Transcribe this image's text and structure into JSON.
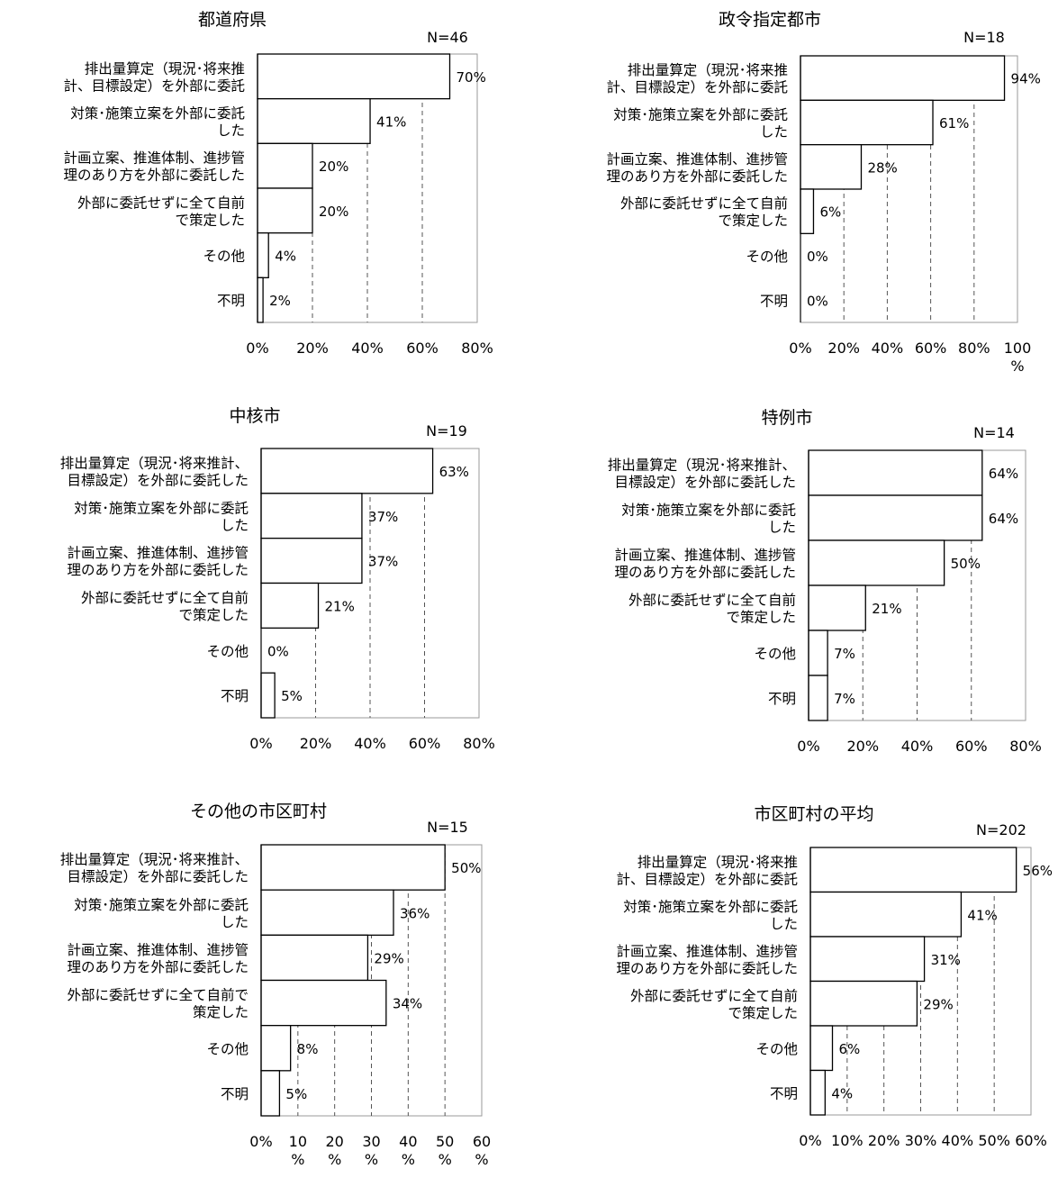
{
  "chart_data": [
    {
      "type": "bar",
      "orientation": "horizontal",
      "title": "都道府県",
      "n_label": "N=46",
      "categories": [
        [
          "排出量算定（現況･将来推",
          "計、目標設定）を外部に委託"
        ],
        [
          "対策･施策立案を外部に委託",
          "した"
        ],
        [
          "計画立案、推進体制、進捗管",
          "理のあり方を外部に委託した"
        ],
        [
          "外部に委託せずに全て自前",
          "で策定した"
        ],
        [
          "その他"
        ],
        [
          "不明"
        ]
      ],
      "values": [
        70,
        41,
        20,
        20,
        4,
        2
      ],
      "value_labels": [
        "70%",
        "41%",
        "20%",
        "20%",
        "4%",
        "2%"
      ],
      "xlim": [
        0,
        80
      ],
      "ticks": [
        0,
        20,
        40,
        60,
        80
      ],
      "tick_labels": [
        [
          "0%"
        ],
        [
          "20%"
        ],
        [
          "40%"
        ],
        [
          "60%"
        ],
        [
          "80%"
        ]
      ],
      "grid": true
    },
    {
      "type": "bar",
      "orientation": "horizontal",
      "title": "政令指定都市",
      "n_label": "N=18",
      "categories": [
        [
          "排出量算定（現況･将来推",
          "計、目標設定）を外部に委託"
        ],
        [
          "対策･施策立案を外部に委託",
          "した"
        ],
        [
          "計画立案、推進体制、進捗管",
          "理のあり方を外部に委託した"
        ],
        [
          "外部に委託せずに全て自前",
          "で策定した"
        ],
        [
          "その他"
        ],
        [
          "不明"
        ]
      ],
      "values": [
        94,
        61,
        28,
        6,
        0,
        0
      ],
      "value_labels": [
        "94%",
        "61%",
        "28%",
        "6%",
        "0%",
        "0%"
      ],
      "xlim": [
        0,
        100
      ],
      "ticks": [
        0,
        20,
        40,
        60,
        80,
        100
      ],
      "tick_labels": [
        [
          "0%"
        ],
        [
          "20%"
        ],
        [
          "40%"
        ],
        [
          "60%"
        ],
        [
          "80%"
        ],
        [
          "100",
          "%"
        ]
      ],
      "grid": true
    },
    {
      "type": "bar",
      "orientation": "horizontal",
      "title": "中核市",
      "n_label": "N=19",
      "categories": [
        [
          "排出量算定（現況･将来推計、",
          "目標設定）を外部に委託した"
        ],
        [
          "対策･施策立案を外部に委託",
          "した"
        ],
        [
          "計画立案、推進体制、進捗管",
          "理のあり方を外部に委託した"
        ],
        [
          "外部に委託せずに全て自前",
          "で策定した"
        ],
        [
          "その他"
        ],
        [
          "不明"
        ]
      ],
      "values": [
        63,
        37,
        37,
        21,
        0,
        5
      ],
      "value_labels": [
        "63%",
        "37%",
        "37%",
        "21%",
        "0%",
        "5%"
      ],
      "xlim": [
        0,
        80
      ],
      "ticks": [
        0,
        20,
        40,
        60,
        80
      ],
      "tick_labels": [
        [
          "0%"
        ],
        [
          "20%"
        ],
        [
          "40%"
        ],
        [
          "60%"
        ],
        [
          "80%"
        ]
      ],
      "grid": true
    },
    {
      "type": "bar",
      "orientation": "horizontal",
      "title": "特例市",
      "n_label": "N=14",
      "categories": [
        [
          "排出量算定（現況･将来推計、",
          "目標設定）を外部に委託した"
        ],
        [
          "対策･施策立案を外部に委託",
          "した"
        ],
        [
          "計画立案、推進体制、進捗管",
          "理のあり方を外部に委託した"
        ],
        [
          "外部に委託せずに全て自前",
          "で策定した"
        ],
        [
          "その他"
        ],
        [
          "不明"
        ]
      ],
      "values": [
        64,
        64,
        50,
        21,
        7,
        7
      ],
      "value_labels": [
        "64%",
        "64%",
        "50%",
        "21%",
        "7%",
        "7%"
      ],
      "xlim": [
        0,
        80
      ],
      "ticks": [
        0,
        20,
        40,
        60,
        80
      ],
      "tick_labels": [
        [
          "0%"
        ],
        [
          "20%"
        ],
        [
          "40%"
        ],
        [
          "60%"
        ],
        [
          "80%"
        ]
      ],
      "grid": true
    },
    {
      "type": "bar",
      "orientation": "horizontal",
      "title": "その他の市区町村",
      "n_label": "N=15",
      "categories": [
        [
          "排出量算定（現況･将来推計、",
          "目標設定）を外部に委託した"
        ],
        [
          "対策･施策立案を外部に委託",
          "した"
        ],
        [
          "計画立案、推進体制、進捗管",
          "理のあり方を外部に委託した"
        ],
        [
          "外部に委託せずに全て自前で",
          "策定した"
        ],
        [
          "その他"
        ],
        [
          "不明"
        ]
      ],
      "values": [
        50,
        36,
        29,
        34,
        8,
        5
      ],
      "value_labels": [
        "50%",
        "36%",
        "29%",
        "34%",
        "8%",
        "5%"
      ],
      "xlim": [
        0,
        60
      ],
      "ticks": [
        0,
        10,
        20,
        30,
        40,
        50,
        60
      ],
      "tick_labels": [
        [
          "0%"
        ],
        [
          "10",
          "%"
        ],
        [
          "20",
          "%"
        ],
        [
          "30",
          "%"
        ],
        [
          "40",
          "%"
        ],
        [
          "50",
          "%"
        ],
        [
          "60",
          "%"
        ]
      ],
      "grid": true
    },
    {
      "type": "bar",
      "orientation": "horizontal",
      "title": "市区町村の平均",
      "n_label": "N=202",
      "categories": [
        [
          "排出量算定（現況･将来推",
          "計、目標設定）を外部に委託"
        ],
        [
          "対策･施策立案を外部に委託",
          "した"
        ],
        [
          "計画立案、推進体制、進捗管",
          "理のあり方を外部に委託した"
        ],
        [
          "外部に委託せずに全て自前",
          "で策定した"
        ],
        [
          "その他"
        ],
        [
          "不明"
        ]
      ],
      "values": [
        56,
        41,
        31,
        29,
        6,
        4
      ],
      "value_labels": [
        "56%",
        "41%",
        "31%",
        "29%",
        "6%",
        "4%"
      ],
      "xlim": [
        0,
        60
      ],
      "ticks": [
        0,
        10,
        20,
        30,
        40,
        50,
        60
      ],
      "tick_labels": [
        [
          "0%"
        ],
        [
          "10%"
        ],
        [
          "20%"
        ],
        [
          "30%"
        ],
        [
          "40%"
        ],
        [
          "50%"
        ],
        [
          "60%"
        ]
      ],
      "grid": true
    }
  ]
}
